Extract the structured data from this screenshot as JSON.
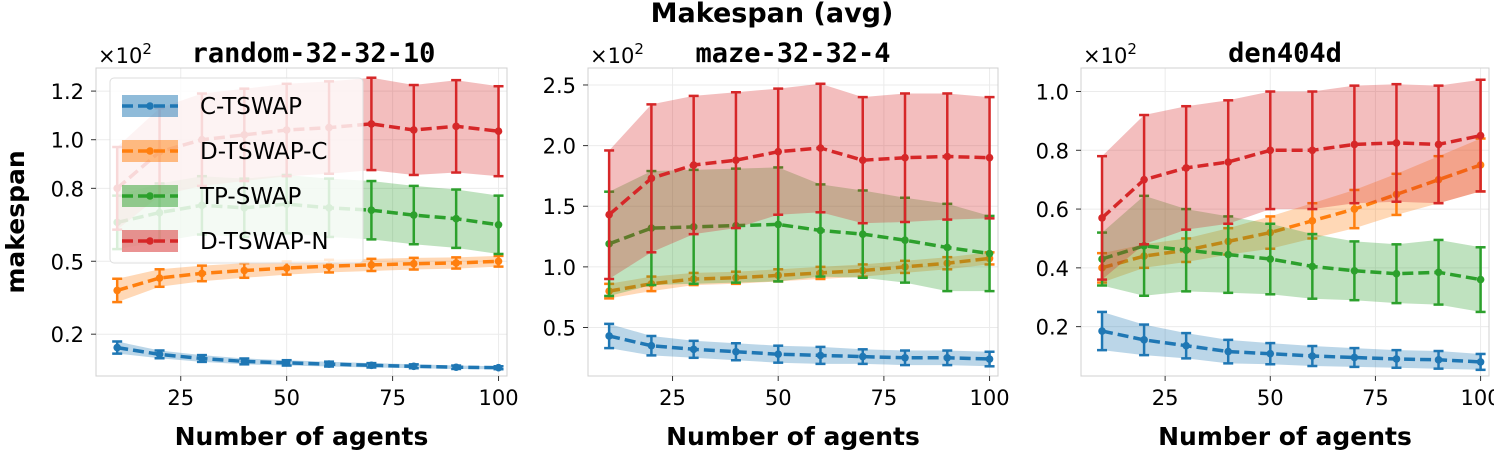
{
  "suptitle": "Makespan (avg)",
  "ylabel": "makespan",
  "xlabel": "Number of agents",
  "multiplier_label": "×10",
  "multiplier_exp": "2",
  "legend": [
    {
      "name": "C-TSWAP",
      "color": "#1f77b4"
    },
    {
      "name": "D-TSWAP-C",
      "color": "#ff7f0e"
    },
    {
      "name": "TP-SWAP",
      "color": "#2ca02c"
    },
    {
      "name": "D-TSWAP-N",
      "color": "#d62728"
    }
  ],
  "chart_data": [
    {
      "type": "line",
      "title": "random-32-32-10",
      "xlabel": "Number of agents",
      "ylabel": "makespan",
      "xlim": [
        5,
        102
      ],
      "ylim": [
        0.028,
        1.295
      ],
      "xticks": [
        25,
        50,
        75,
        100
      ],
      "yticks": [
        0.2,
        0.5,
        0.8,
        1.0,
        1.2
      ],
      "ytick_labels": [
        "0.2",
        "0.5",
        "0.8",
        "1.0",
        "1.2"
      ],
      "grid": true,
      "legend_position": "upper-left",
      "x": [
        10,
        20,
        30,
        40,
        50,
        60,
        70,
        80,
        90,
        100
      ],
      "series": [
        {
          "name": "C-TSWAP",
          "color": "#1f77b4",
          "values": [
            0.145,
            0.117,
            0.1,
            0.088,
            0.082,
            0.077,
            0.072,
            0.068,
            0.064,
            0.062
          ],
          "err": [
            0.025,
            0.016,
            0.014,
            0.012,
            0.011,
            0.01,
            0.009,
            0.008,
            0.007,
            0.006
          ]
        },
        {
          "name": "D-TSWAP-C",
          "color": "#ff7f0e",
          "values": [
            0.38,
            0.431,
            0.45,
            0.462,
            0.472,
            0.48,
            0.485,
            0.49,
            0.493,
            0.5
          ],
          "err": [
            0.048,
            0.036,
            0.032,
            0.03,
            0.027,
            0.026,
            0.025,
            0.024,
            0.023,
            0.022
          ]
        },
        {
          "name": "TP-SWAP",
          "color": "#2ca02c",
          "values": [
            0.66,
            0.7,
            0.73,
            0.72,
            0.735,
            0.72,
            0.71,
            0.69,
            0.675,
            0.65
          ],
          "err": [
            0.11,
            0.12,
            0.12,
            0.12,
            0.12,
            0.12,
            0.12,
            0.12,
            0.12,
            0.12
          ]
        },
        {
          "name": "D-TSWAP-N",
          "color": "#d62728",
          "values": [
            0.8,
            0.95,
            1.0,
            1.02,
            1.04,
            1.05,
            1.065,
            1.04,
            1.055,
            1.035
          ],
          "err": [
            0.17,
            0.18,
            0.19,
            0.19,
            0.19,
            0.19,
            0.19,
            0.185,
            0.19,
            0.185
          ]
        }
      ]
    },
    {
      "type": "line",
      "title": "maze-32-32-4",
      "xlabel": "Number of agents",
      "ylabel": "",
      "xlim": [
        5,
        102
      ],
      "ylim": [
        0.1,
        2.64
      ],
      "xticks": [
        25,
        50,
        75,
        100
      ],
      "yticks": [
        0.5,
        1.0,
        1.5,
        2.0,
        2.5
      ],
      "ytick_labels": [
        "0.5",
        "1.0",
        "1.5",
        "2.0",
        "2.5"
      ],
      "grid": true,
      "legend_position": "",
      "x": [
        10,
        20,
        30,
        40,
        50,
        60,
        70,
        80,
        90,
        100
      ],
      "series": [
        {
          "name": "C-TSWAP",
          "color": "#1f77b4",
          "values": [
            0.43,
            0.35,
            0.32,
            0.3,
            0.28,
            0.27,
            0.26,
            0.25,
            0.25,
            0.24
          ],
          "err": [
            0.1,
            0.08,
            0.07,
            0.07,
            0.07,
            0.07,
            0.06,
            0.06,
            0.06,
            0.06
          ]
        },
        {
          "name": "D-TSWAP-C",
          "color": "#ff7f0e",
          "values": [
            0.8,
            0.86,
            0.9,
            0.91,
            0.93,
            0.95,
            0.97,
            1.0,
            1.03,
            1.07
          ],
          "err": [
            0.06,
            0.06,
            0.05,
            0.05,
            0.05,
            0.05,
            0.05,
            0.05,
            0.05,
            0.05
          ]
        },
        {
          "name": "TP-SWAP",
          "color": "#2ca02c",
          "values": [
            1.19,
            1.32,
            1.33,
            1.34,
            1.35,
            1.3,
            1.27,
            1.22,
            1.16,
            1.11
          ],
          "err": [
            0.43,
            0.47,
            0.47,
            0.47,
            0.47,
            0.38,
            0.36,
            0.35,
            0.36,
            0.31
          ]
        },
        {
          "name": "D-TSWAP-N",
          "color": "#d62728",
          "values": [
            1.43,
            1.73,
            1.84,
            1.88,
            1.95,
            1.98,
            1.88,
            1.9,
            1.91,
            1.9
          ],
          "err": [
            0.53,
            0.61,
            0.57,
            0.56,
            0.52,
            0.53,
            0.52,
            0.53,
            0.52,
            0.5
          ]
        }
      ]
    },
    {
      "type": "line",
      "title": "den404d",
      "xlabel": "Number of agents",
      "ylabel": "",
      "xlim": [
        5,
        102
      ],
      "ylim": [
        0.032,
        1.08
      ],
      "xticks": [
        25,
        50,
        75,
        100
      ],
      "yticks": [
        0.2,
        0.4,
        0.6,
        0.8,
        1.0
      ],
      "ytick_labels": [
        "0.2",
        "0.4",
        "0.6",
        "0.8",
        "1.0"
      ],
      "grid": true,
      "legend_position": "",
      "x": [
        10,
        20,
        30,
        40,
        50,
        60,
        70,
        80,
        90,
        100
      ],
      "series": [
        {
          "name": "C-TSWAP",
          "color": "#1f77b4",
          "values": [
            0.185,
            0.155,
            0.135,
            0.115,
            0.108,
            0.1,
            0.095,
            0.09,
            0.087,
            0.08
          ],
          "err": [
            0.065,
            0.052,
            0.043,
            0.04,
            0.036,
            0.034,
            0.032,
            0.03,
            0.03,
            0.027
          ]
        },
        {
          "name": "D-TSWAP-C",
          "color": "#ff7f0e",
          "values": [
            0.4,
            0.44,
            0.46,
            0.49,
            0.52,
            0.56,
            0.6,
            0.65,
            0.7,
            0.75
          ],
          "err": [
            0.05,
            0.04,
            0.04,
            0.045,
            0.055,
            0.06,
            0.065,
            0.07,
            0.08,
            0.09
          ]
        },
        {
          "name": "TP-SWAP",
          "color": "#2ca02c",
          "values": [
            0.43,
            0.475,
            0.46,
            0.445,
            0.43,
            0.405,
            0.39,
            0.38,
            0.385,
            0.36
          ],
          "err": [
            0.09,
            0.17,
            0.14,
            0.13,
            0.12,
            0.11,
            0.1,
            0.1,
            0.11,
            0.11
          ]
        },
        {
          "name": "D-TSWAP-N",
          "color": "#d62728",
          "values": [
            0.57,
            0.7,
            0.74,
            0.76,
            0.8,
            0.8,
            0.82,
            0.825,
            0.82,
            0.85
          ],
          "err": [
            0.21,
            0.22,
            0.21,
            0.21,
            0.2,
            0.2,
            0.2,
            0.2,
            0.2,
            0.19
          ]
        }
      ]
    }
  ]
}
